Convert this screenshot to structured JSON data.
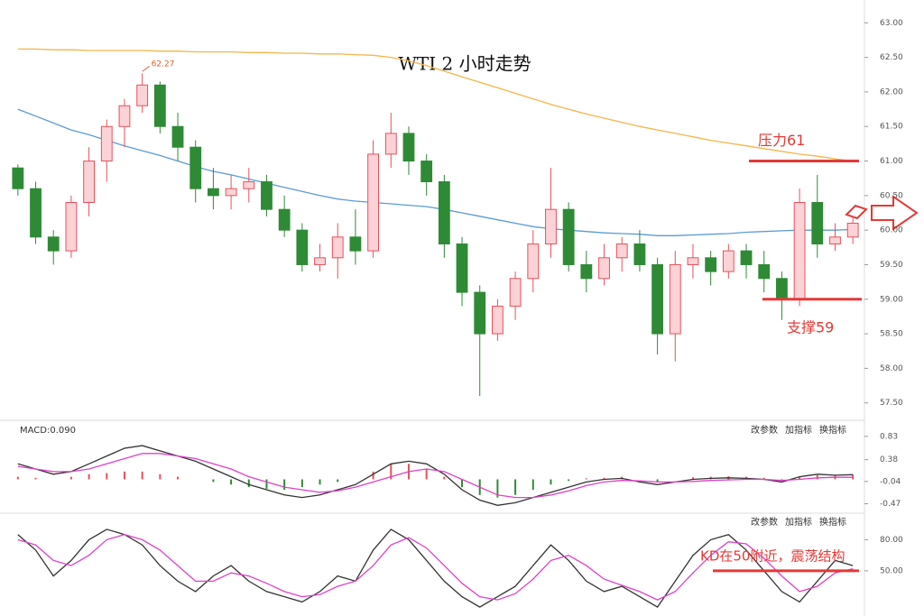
{
  "chart_data": [
    {
      "type": "candlestick",
      "title": "WTI 2 小时走势",
      "open": [
        60.9,
        60.6,
        59.9,
        59.7,
        60.4,
        61.0,
        61.5,
        61.8,
        62.1,
        61.5,
        61.2,
        60.6,
        60.5,
        60.6,
        60.7,
        60.3,
        60.0,
        59.5,
        59.6,
        59.9,
        59.7,
        61.1,
        61.4,
        61.0,
        60.7,
        59.8,
        59.1,
        58.5,
        58.9,
        59.3,
        59.8,
        60.3,
        59.5,
        59.3,
        59.6,
        59.8,
        59.5,
        58.5,
        59.5,
        59.6,
        59.4,
        59.7,
        59.5,
        59.3,
        59.0,
        60.4,
        59.8,
        59.9
      ],
      "high": [
        60.95,
        60.7,
        60.0,
        60.5,
        61.2,
        61.6,
        61.9,
        62.27,
        62.15,
        61.7,
        61.3,
        60.9,
        60.8,
        60.9,
        60.8,
        60.5,
        60.1,
        59.8,
        60.1,
        60.3,
        61.3,
        61.7,
        61.5,
        61.1,
        60.8,
        59.9,
        59.2,
        59.0,
        59.4,
        60.0,
        60.9,
        60.4,
        59.7,
        59.8,
        59.9,
        60.0,
        59.6,
        59.7,
        59.8,
        59.7,
        59.8,
        59.8,
        59.7,
        59.4,
        60.6,
        60.8,
        60.1,
        60.2
      ],
      "low": [
        60.5,
        59.8,
        59.5,
        59.6,
        60.2,
        60.7,
        61.2,
        61.7,
        61.4,
        61.0,
        60.4,
        60.3,
        60.3,
        60.4,
        60.2,
        59.9,
        59.4,
        59.4,
        59.3,
        59.5,
        59.6,
        60.9,
        60.8,
        60.5,
        59.6,
        58.9,
        57.6,
        58.4,
        58.7,
        59.1,
        59.6,
        59.4,
        59.1,
        59.2,
        59.4,
        59.4,
        58.2,
        58.1,
        59.3,
        59.2,
        59.3,
        59.3,
        59.1,
        58.7,
        58.9,
        59.6,
        59.7,
        59.8
      ],
      "close": [
        60.6,
        59.9,
        59.7,
        60.4,
        61.0,
        61.5,
        61.8,
        62.1,
        61.5,
        61.2,
        60.6,
        60.5,
        60.6,
        60.7,
        60.3,
        60.0,
        59.5,
        59.6,
        59.9,
        59.7,
        61.1,
        61.4,
        61.0,
        60.7,
        59.8,
        59.1,
        58.5,
        58.9,
        59.3,
        59.8,
        60.3,
        59.5,
        59.3,
        59.6,
        59.8,
        59.5,
        58.5,
        59.5,
        59.6,
        59.4,
        59.7,
        59.5,
        59.3,
        59.0,
        60.4,
        59.8,
        59.9,
        60.1
      ],
      "up_color": "#e8505b",
      "down_color": "#2f8a36",
      "lines": [
        {
          "color": "#f5b54a",
          "values": [
            62.62,
            62.62,
            62.61,
            62.61,
            62.6,
            62.6,
            62.6,
            62.6,
            62.59,
            62.59,
            62.58,
            62.58,
            62.58,
            62.57,
            62.57,
            62.56,
            62.56,
            62.55,
            62.55,
            62.54,
            62.53,
            62.5,
            62.45,
            62.38,
            62.3,
            62.22,
            62.14,
            62.06,
            61.98,
            61.9,
            61.82,
            61.75,
            61.68,
            61.62,
            61.56,
            61.5,
            61.45,
            61.4,
            61.35,
            61.3,
            61.26,
            61.22,
            61.18,
            61.14,
            61.1,
            61.07,
            61.03,
            61.0
          ]
        },
        {
          "color": "#5b9bd5",
          "values": [
            61.75,
            61.65,
            61.55,
            61.45,
            61.38,
            61.3,
            61.22,
            61.15,
            61.08,
            61.0,
            60.92,
            60.85,
            60.8,
            60.74,
            60.68,
            60.62,
            60.56,
            60.5,
            60.45,
            60.42,
            60.4,
            60.38,
            60.36,
            60.34,
            60.3,
            60.25,
            60.2,
            60.15,
            60.1,
            60.05,
            60.02,
            60.0,
            59.98,
            59.96,
            59.95,
            59.94,
            59.92,
            59.92,
            59.93,
            59.94,
            59.95,
            59.97,
            59.98,
            59.99,
            60.0,
            60.0,
            60.0,
            60.01
          ]
        }
      ],
      "ylim": [
        57.3,
        63.2
      ],
      "yticks": [
        {
          "value": 57.5,
          "label": "57.50"
        },
        {
          "value": 58,
          "label": "58.00"
        },
        {
          "value": 58.5,
          "label": "58.50"
        },
        {
          "value": 59,
          "label": "59.00"
        },
        {
          "value": 59.5,
          "label": "59.50"
        },
        {
          "value": 60,
          "label": "60.00"
        },
        {
          "value": 60.5,
          "label": "60.50"
        },
        {
          "value": 61,
          "label": "61.00"
        },
        {
          "value": 61.5,
          "label": "61.50"
        },
        {
          "value": 62,
          "label": "62.00"
        },
        {
          "value": 62.5,
          "label": "62.50"
        },
        {
          "value": 63,
          "label": "63.00"
        }
      ],
      "resistance": {
        "label": "压力61",
        "value": 61
      },
      "support": {
        "label": "支撑59",
        "value": 59
      },
      "annotation_color": "#e53935"
    },
    {
      "type": "macd",
      "label": "MACD:0.090",
      "toolbar": [
        "改参数",
        "加指标",
        "换指标"
      ],
      "histogram": [
        0.05,
        0.03,
        0.0,
        0.05,
        0.1,
        0.12,
        0.15,
        0.15,
        0.1,
        0.05,
        0.0,
        -0.05,
        -0.1,
        -0.15,
        -0.18,
        -0.2,
        -0.15,
        -0.1,
        -0.05,
        0.0,
        0.15,
        0.3,
        0.3,
        0.2,
        0.05,
        -0.15,
        -0.3,
        -0.35,
        -0.3,
        -0.2,
        -0.1,
        -0.03,
        0.02,
        0.03,
        0.05,
        0.0,
        -0.05,
        0.0,
        0.04,
        0.05,
        0.06,
        0.05,
        0.03,
        -0.02,
        0.05,
        0.08,
        0.07,
        0.09
      ],
      "series": [
        {
          "color": "#333333",
          "values": [
            0.3,
            0.2,
            0.1,
            0.15,
            0.3,
            0.45,
            0.6,
            0.65,
            0.55,
            0.45,
            0.35,
            0.2,
            0.05,
            -0.1,
            -0.2,
            -0.3,
            -0.35,
            -0.3,
            -0.2,
            -0.1,
            0.1,
            0.3,
            0.35,
            0.3,
            0.1,
            -0.2,
            -0.4,
            -0.5,
            -0.45,
            -0.35,
            -0.25,
            -0.15,
            -0.05,
            0.0,
            0.02,
            -0.05,
            -0.1,
            -0.05,
            0.0,
            0.02,
            0.03,
            0.02,
            0.0,
            -0.05,
            0.05,
            0.1,
            0.08,
            0.09
          ]
        },
        {
          "color": "#e040c8",
          "values": [
            0.25,
            0.2,
            0.15,
            0.15,
            0.2,
            0.3,
            0.4,
            0.5,
            0.5,
            0.45,
            0.4,
            0.3,
            0.2,
            0.05,
            -0.05,
            -0.15,
            -0.2,
            -0.25,
            -0.22,
            -0.15,
            -0.05,
            0.05,
            0.15,
            0.2,
            0.15,
            0.0,
            -0.15,
            -0.3,
            -0.35,
            -0.35,
            -0.3,
            -0.22,
            -0.12,
            -0.05,
            -0.02,
            -0.03,
            -0.05,
            -0.05,
            -0.04,
            -0.02,
            -0.01,
            0.0,
            0.0,
            -0.02,
            0.0,
            0.03,
            0.04,
            0.04
          ]
        }
      ],
      "up_color": "#e8505b",
      "down_color": "#2f8a36",
      "ylim": [
        -0.6,
        1.07
      ],
      "yticks": [
        -0.47,
        -0.04,
        0.38,
        0.83
      ]
    },
    {
      "type": "kd",
      "toolbar": [
        "改参数",
        "加指标",
        "换指标"
      ],
      "series": [
        {
          "color": "#333333",
          "values": [
            85,
            70,
            45,
            60,
            80,
            90,
            85,
            75,
            55,
            40,
            30,
            45,
            55,
            40,
            30,
            25,
            20,
            30,
            45,
            40,
            70,
            90,
            80,
            60,
            40,
            25,
            15,
            25,
            35,
            55,
            75,
            60,
            40,
            30,
            35,
            25,
            15,
            40,
            65,
            80,
            85,
            70,
            50,
            30,
            20,
            40,
            60,
            55
          ]
        },
        {
          "color": "#e040c8",
          "values": [
            80,
            75,
            60,
            55,
            65,
            80,
            85,
            80,
            70,
            55,
            40,
            40,
            48,
            45,
            38,
            30,
            25,
            27,
            35,
            40,
            55,
            75,
            82,
            72,
            55,
            38,
            25,
            22,
            28,
            42,
            60,
            65,
            55,
            42,
            36,
            30,
            22,
            30,
            48,
            65,
            78,
            76,
            62,
            45,
            30,
            35,
            48,
            52
          ]
        }
      ],
      "ylim": [
        9,
        103
      ],
      "yticks": [
        {
          "value": 50,
          "label": "50.00"
        },
        {
          "value": 80,
          "label": "80.00"
        }
      ],
      "level": {
        "label": "KD在50附近，震荡结构",
        "value": 50
      },
      "annotation_color": "#e53935"
    }
  ]
}
